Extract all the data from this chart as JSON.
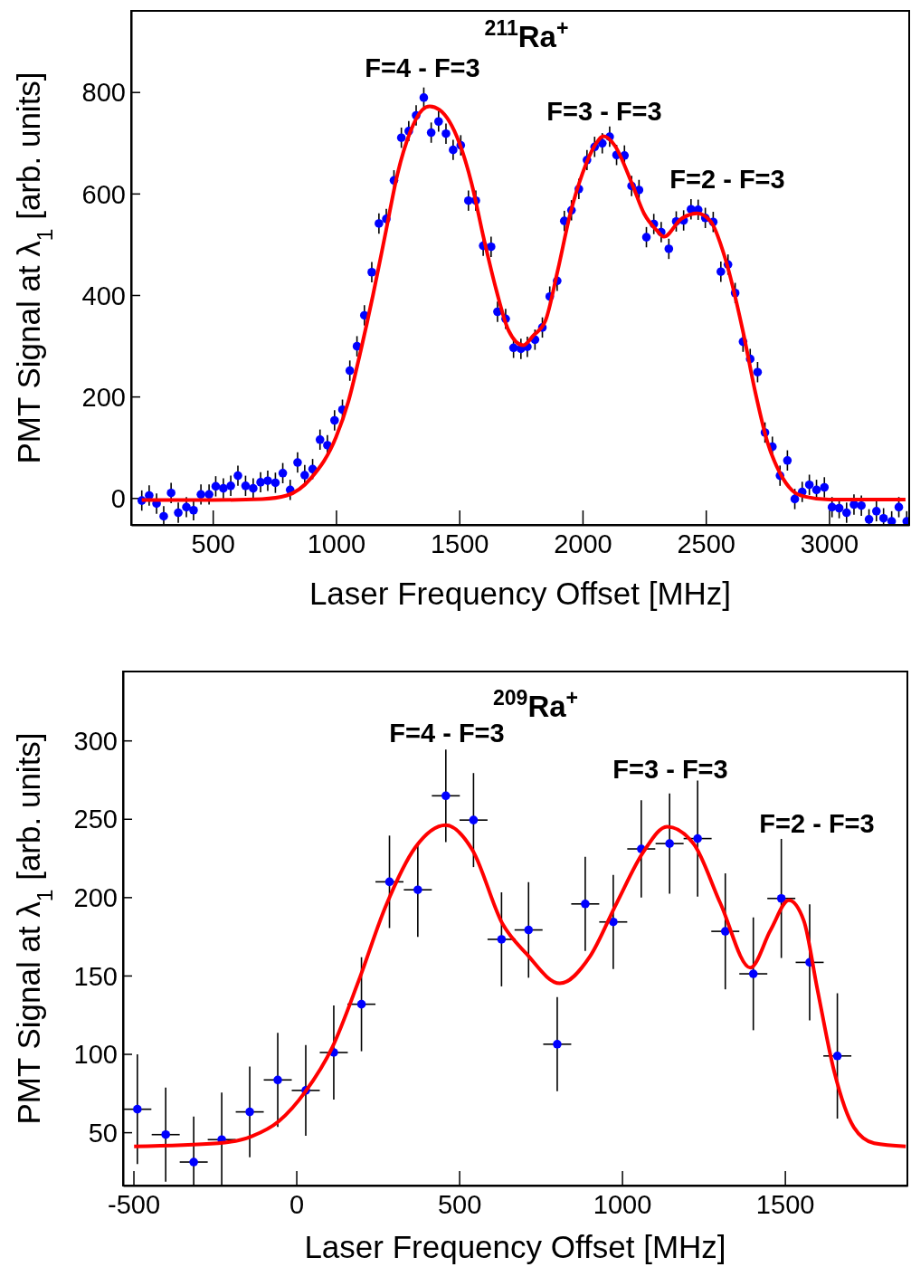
{
  "chart_data": [
    {
      "type": "scatter",
      "title": "$^{211}$Ra$^{+}$",
      "xlabel": "Laser Frequency Offset [MHz]",
      "ylabel": "PMT Signal at λ$_{1}$ [arb. units]",
      "xlim": [
        169,
        3325
      ],
      "ylim": [
        -53,
        960
      ],
      "xticks": [
        500,
        1000,
        1500,
        2000,
        2500,
        3000
      ],
      "yticks": [
        0,
        200,
        400,
        600,
        800
      ],
      "annotations": [
        "F=4 - F=3",
        "F=3 - F=3",
        "F=2 - F=3"
      ],
      "series": [
        {
          "type": "scatter",
          "marker": "circle",
          "color": "#0000ff",
          "x": [
            212,
            242,
            272,
            301,
            331,
            360,
            393,
            422,
            452,
            485,
            512,
            543,
            573,
            602,
            633,
            664,
            694,
            723,
            754,
            784,
            814,
            844,
            873,
            905,
            935,
            965,
            994,
            1026,
            1056,
            1085,
            1115,
            1145,
            1174,
            1204,
            1235,
            1265,
            1295,
            1325,
            1356,
            1386,
            1416,
            1446,
            1475,
            1506,
            1537,
            1567,
            1597,
            1629,
            1655,
            1688,
            1720,
            1750,
            1776,
            1807,
            1837,
            1867,
            1897,
            1926,
            1955,
            1985,
            2018,
            2049,
            2080,
            2110,
            2138,
            2170,
            2199,
            2229,
            2259,
            2289,
            2319,
            2350,
            2380,
            2410,
            2440,
            2469,
            2498,
            2530,
            2561,
            2590,
            2619,
            2651,
            2680,
            2710,
            2740,
            2770,
            2801,
            2831,
            2861,
            2891,
            2920,
            2949,
            2981,
            3012,
            3041,
            3071,
            3101,
            3131,
            3162,
            3192,
            3221,
            3254,
            3283,
            3315
          ],
          "values": [
            -5,
            5,
            -11,
            -36,
            10,
            -29,
            -18,
            -24,
            7,
            7,
            23,
            19,
            24,
            44,
            24,
            19,
            31,
            34,
            30,
            49,
            16,
            70,
            45,
            57,
            115,
            104,
            153,
            174,
            251,
            299,
            360,
            445,
            541,
            550,
            626,
            710,
            723,
            754,
            789,
            720,
            742,
            718,
            686,
            695,
            586,
            586,
            497,
            495,
            367,
            353,
            296,
            294,
            298,
            312,
            336,
            397,
            428,
            546,
            567,
            609,
            666,
            692,
            699,
            712,
            676,
            675,
            615,
            607,
            514,
            540,
            524,
            491,
            545,
            547,
            569,
            568,
            552,
            544,
            446,
            460,
            404,
            308,
            274,
            248,
            129,
            101,
            44,
            74,
            -2,
            12,
            26,
            16,
            21,
            -18,
            -20,
            -29,
            -13,
            -15,
            -42,
            -26,
            -40,
            -46,
            -18,
            -46
          ],
          "errors": [
            20,
            20,
            20,
            20,
            20,
            20,
            20,
            20,
            20,
            20,
            20,
            20,
            20,
            20,
            20,
            20,
            20,
            20,
            20,
            20,
            20,
            20,
            20,
            20,
            20,
            20,
            20,
            20,
            20,
            20,
            20,
            20,
            20,
            20,
            20,
            20,
            20,
            20,
            20,
            20,
            20,
            20,
            20,
            20,
            20,
            20,
            20,
            20,
            20,
            20,
            20,
            20,
            20,
            20,
            20,
            20,
            20,
            20,
            20,
            20,
            20,
            20,
            20,
            20,
            20,
            20,
            20,
            20,
            20,
            20,
            20,
            20,
            20,
            20,
            20,
            20,
            20,
            20,
            20,
            20,
            20,
            20,
            20,
            20,
            20,
            20,
            20,
            20,
            20,
            20,
            20,
            20,
            20,
            20,
            20,
            20,
            20,
            20,
            20,
            20,
            20,
            20,
            20,
            20
          ]
        },
        {
          "type": "line",
          "marker": "none",
          "color": "#ff0000",
          "line_style": "solid",
          "x": [
            212,
            500,
            700,
            800,
            900,
            1000,
            1050,
            1100,
            1150,
            1200,
            1250,
            1300,
            1350,
            1380,
            1420,
            1500,
            1550,
            1600,
            1650,
            1700,
            1759,
            1800,
            1850,
            1900,
            1950,
            2000,
            2050,
            2085,
            2130,
            2200,
            2250,
            2300,
            2330,
            2400,
            2465,
            2520,
            2580,
            2650,
            2700,
            2750,
            2800,
            2850,
            2900,
            3000,
            3310
          ],
          "values": [
            -4,
            -4,
            -2,
            5,
            40,
            120,
            190,
            290,
            400,
            520,
            640,
            720,
            765,
            772,
            765,
            700,
            620,
            510,
            410,
            330,
            301,
            320,
            350,
            450,
            560,
            640,
            695,
            713,
            695,
            620,
            560,
            528,
            515,
            550,
            561,
            545,
            470,
            330,
            210,
            110,
            50,
            15,
            3,
            -3,
            -3
          ]
        }
      ]
    },
    {
      "type": "scatter",
      "title": "$^{209}$Ra$^{+}$",
      "xlabel": "Laser Frequency Offset [MHz]",
      "ylabel": "PMT Signal at λ$_{1}$ [arb. units]",
      "xlim": [
        -532,
        1876
      ],
      "ylim": [
        16,
        344
      ],
      "xticks": [
        -500,
        0,
        500,
        1000,
        1500
      ],
      "yticks": [
        50,
        100,
        150,
        200,
        250,
        300
      ],
      "annotations": [
        "F=4 - F=3",
        "F=3 - F=3",
        "F=2 - F=3"
      ],
      "series": [
        {
          "type": "scatter",
          "marker": "circle",
          "color": "#0000ff",
          "x": [
            -488,
            -401,
            -315,
            -229,
            -143,
            -57,
            29,
            115,
            200,
            286,
            373,
            459,
            544,
            630,
            713,
            801,
            887,
            973,
            1059,
            1146,
            1232,
            1317,
            1403,
            1489,
            1576,
            1661
          ],
          "values": [
            64.7,
            48.5,
            31,
            45.3,
            63,
            83.4,
            76.7,
            100.9,
            131.7,
            209.8,
            204.7,
            264.7,
            249.2,
            173.1,
            179.1,
            106.2,
            195.7,
            184.2,
            230.8,
            234.2,
            237.4,
            178.2,
            151.1,
            199.2,
            158.4,
            98.7
          ],
          "errors": [
            35,
            30,
            29,
            30,
            29,
            30,
            29,
            30,
            30,
            29.5,
            30,
            29.5,
            30,
            30,
            30.5,
            30,
            30,
            30,
            31,
            32,
            37,
            37,
            36,
            38,
            37,
            40
          ],
          "xerrors": [
            43,
            43,
            43,
            43,
            43,
            43,
            43,
            43,
            43,
            43,
            43,
            43,
            43,
            43,
            43,
            43,
            43,
            43,
            43,
            43,
            43,
            43,
            43,
            43,
            43,
            43
          ]
        },
        {
          "type": "line",
          "marker": "none",
          "color": "#ff0000",
          "line_style": "solid",
          "x": [
            -498,
            -240,
            -137,
            -54,
            28,
            110,
            192,
            274,
            366,
            459,
            541,
            633,
            706,
            809,
            901,
            983,
            1066,
            1138,
            1220,
            1302,
            1394,
            1456,
            1512,
            1558,
            1599,
            1651,
            1712,
            1774,
            1871
          ],
          "values": [
            41,
            43,
            47.4,
            57,
            76,
            104,
            147,
            194,
            232,
            246,
            230,
            183,
            164,
            145,
            162,
            196,
            229,
            245,
            234,
            196,
            155,
            179,
            198,
            185,
            142,
            89,
            53,
            43,
            41
          ]
        }
      ]
    }
  ]
}
